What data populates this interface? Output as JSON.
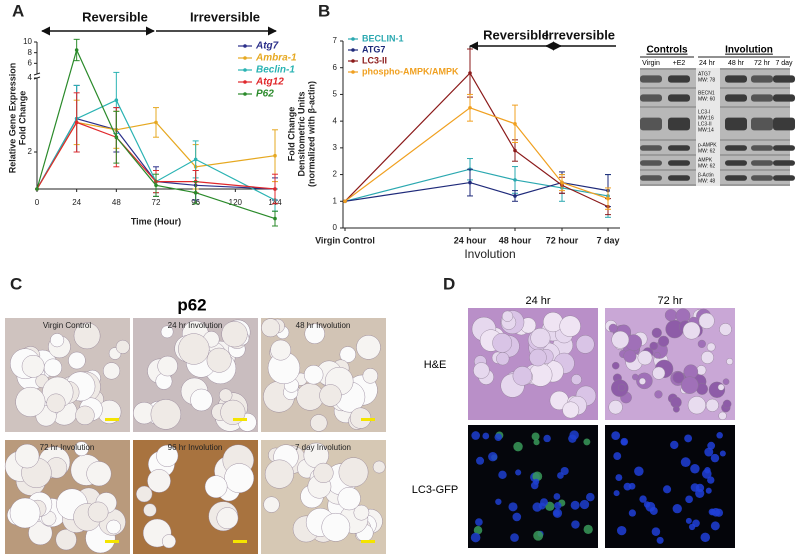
{
  "panels": {
    "a": "A",
    "b": "B",
    "c": "C",
    "d": "D"
  },
  "chart_data": [
    {
      "type": "line",
      "annotations": [
        "Reversible",
        "Irreversible"
      ],
      "xlabel": "Time (Hour)",
      "ylabel": [
        "Relative Gene Expression",
        "Fold Change"
      ],
      "x": [
        0,
        24,
        48,
        72,
        96,
        144
      ],
      "xlim": [
        0,
        144
      ],
      "xticks": [
        0,
        24,
        48,
        72,
        96,
        120,
        144
      ],
      "ylim": [
        1,
        10
      ],
      "ybreak": 4,
      "yticks": [
        2,
        4,
        6,
        8,
        10
      ],
      "legend": "upper right",
      "series": [
        {
          "name": "Atg7",
          "color": "#2b2f8a",
          "values": [
            1,
            2.9,
            2.6,
            1.2,
            1.1,
            1.0
          ],
          "errors": [
            0,
            0.9,
            0.6,
            0.4,
            0.4,
            0.3
          ]
        },
        {
          "name": "Ambra-1",
          "color": "#e6a820",
          "values": [
            1,
            2.8,
            2.6,
            2.8,
            1.6,
            1.9
          ],
          "errors": [
            0,
            0.6,
            0.5,
            0.4,
            0.6,
            0.7
          ]
        },
        {
          "name": "Beclin-1",
          "color": "#2ab3b3",
          "values": [
            1,
            2.9,
            3.4,
            1.2,
            1.8,
            0.7
          ],
          "errors": [
            0,
            0.9,
            0.9,
            0.3,
            0.5,
            0.3
          ]
        },
        {
          "name": "Atg12",
          "color": "#e0282c",
          "values": [
            1,
            2.8,
            2.4,
            1.2,
            1.2,
            1.0
          ],
          "errors": [
            0,
            0.8,
            0.8,
            0.3,
            0.3,
            0.4
          ]
        },
        {
          "name": "P62",
          "color": "#2a8a2a",
          "values": [
            1,
            8.5,
            2.4,
            1.1,
            0.9,
            0.2
          ],
          "errors": [
            0,
            2,
            0.7,
            0.3,
            0.3,
            0.2
          ]
        }
      ]
    },
    {
      "type": "line",
      "annotations": [
        "Reversible",
        "Irreversible"
      ],
      "xlabel": "Involution",
      "ylabel": [
        "Fold Change",
        "Densitometric Units",
        "(normalized with β-actin)"
      ],
      "categories": [
        "Virgin Control",
        "24 hour",
        "48 hour",
        "72 hour",
        "7 day"
      ],
      "ylim": [
        0,
        7
      ],
      "yticks": [
        0,
        1,
        2,
        3,
        4,
        5,
        6,
        7
      ],
      "legend": "upper left",
      "series": [
        {
          "name": "BECLIN-1",
          "color": "#2aa8b0",
          "values": [
            1,
            2.2,
            1.8,
            1.5,
            1.2
          ],
          "errors": [
            0,
            0.4,
            0.5,
            0.5,
            0.8
          ]
        },
        {
          "name": "ATG7",
          "color": "#1f2a7a",
          "values": [
            1,
            1.7,
            1.2,
            1.7,
            1.4
          ],
          "errors": [
            0,
            0.5,
            0.2,
            0.4,
            0.6
          ]
        },
        {
          "name": "LC3-II",
          "color": "#8b1a1a",
          "values": [
            1,
            5.8,
            2.9,
            1.6,
            0.8
          ],
          "errors": [
            0,
            0.9,
            0.4,
            0.3,
            0.3
          ]
        },
        {
          "name": "phospho-AMPK/AMPK",
          "color": "#f0a020",
          "values": [
            1,
            4.5,
            3.9,
            1.7,
            1.1
          ],
          "errors": [
            0,
            0.5,
            0.7,
            0.3,
            0.4
          ]
        }
      ]
    }
  ],
  "blot": {
    "headers": [
      "Controls",
      "Involution"
    ],
    "lanes": [
      "Virgin",
      "+E2",
      "24 hr",
      "48 hr",
      "72 hr",
      "7 day"
    ],
    "bands": [
      [
        "ATG7",
        "MW: 78"
      ],
      [
        "BECN1",
        "MW: 60"
      ],
      [
        "LC3-I",
        "MW:16",
        "LC3-II",
        "MW:14"
      ],
      [
        "p-AMPK",
        "MW: 62"
      ],
      [
        "AMPK",
        "MW: 62"
      ],
      [
        "β-Actin",
        "MW: 48"
      ]
    ]
  },
  "histology": {
    "title": "p62",
    "captions": [
      "Virgin Control",
      "24 hr Involution",
      "48 hr Involution",
      "72 hr Involution",
      "96 hr Involution",
      "7 day Involution"
    ]
  },
  "imaging": {
    "columns": [
      "24 hr",
      "72 hr"
    ],
    "rows": [
      "H&E",
      "LC3-GFP"
    ]
  }
}
